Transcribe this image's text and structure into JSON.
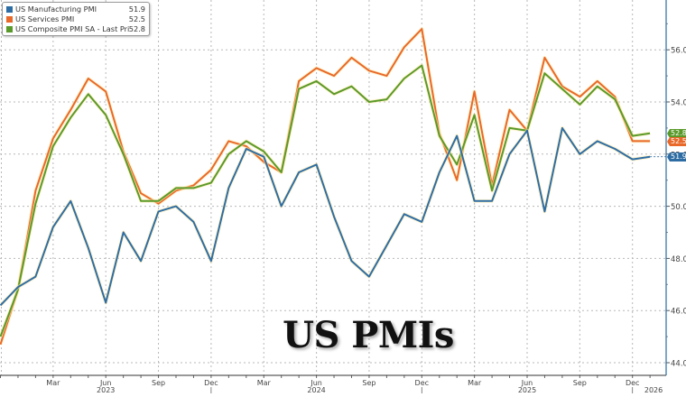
{
  "legend": {
    "items": [
      {
        "label": "US Manufacturing PMI",
        "value": "51.9",
        "color": "#2e6da4"
      },
      {
        "label": "US Services PMI",
        "value": "52.5",
        "color": "#e8692a"
      },
      {
        "label": "US Composite PMI SA - Last Price",
        "value": "52.8",
        "color": "#5a9a2a"
      }
    ]
  },
  "title": "US PMIs",
  "last_tags": [
    {
      "series": "composite",
      "text": "52.8",
      "color": "#5a9a2a"
    },
    {
      "series": "services",
      "text": "52.5",
      "color": "#e8692a"
    },
    {
      "series": "manufacturing",
      "text": "51.9",
      "color": "#2e6da4"
    }
  ],
  "chart_data": {
    "type": "line",
    "title": "US PMIs",
    "xlabel": "",
    "ylabel": "",
    "ylim": [
      43.5,
      57.9
    ],
    "y_ticks": [
      44.0,
      46.0,
      48.0,
      50.0,
      52.0,
      54.0,
      56.0
    ],
    "y_tick_labels": [
      "44.0",
      "46.0",
      "48.0",
      "50.0",
      "52.0",
      "54.0",
      "56.0"
    ],
    "y_axis_position": "right",
    "x_tick_labels": [
      "Mar",
      "Jun",
      "Sep",
      "Dec",
      "Mar",
      "Jun",
      "Sep",
      "Dec",
      "Mar",
      "Jun",
      "Sep",
      "Dec"
    ],
    "x_year_labels": [
      "2023",
      "2024",
      "2025",
      "2026"
    ],
    "grid": true,
    "legend_position": "top-left",
    "x": [
      "Dec 2022",
      "Jan 2023",
      "Feb 2023",
      "Mar 2023",
      "Apr 2023",
      "May 2023",
      "Jun 2023",
      "Jul 2023",
      "Aug 2023",
      "Sep 2023",
      "Oct 2023",
      "Nov 2023",
      "Dec 2023",
      "Jan 2024",
      "Feb 2024",
      "Mar 2024",
      "Apr 2024",
      "May 2024",
      "Jun 2024",
      "Jul 2024",
      "Aug 2024",
      "Sep 2024",
      "Oct 2024",
      "Nov 2024",
      "Dec 2024",
      "Jan 2025",
      "Feb 2025",
      "Mar 2025",
      "Apr 2025",
      "May 2025",
      "Jun 2025",
      "Jul 2025",
      "Aug 2025",
      "Sep 2025",
      "Oct 2025",
      "Nov 2025",
      "Dec 2025",
      "Jan 2026"
    ],
    "series": [
      {
        "name": "US Manufacturing PMI",
        "color": "#2e6da4",
        "last": 51.9,
        "values": [
          46.2,
          46.9,
          47.3,
          49.2,
          50.2,
          48.4,
          46.3,
          49.0,
          47.9,
          49.8,
          50.0,
          49.4,
          47.9,
          50.7,
          52.2,
          51.9,
          50.0,
          51.3,
          51.6,
          49.6,
          47.9,
          47.3,
          48.5,
          49.7,
          49.4,
          51.3,
          52.7,
          50.2,
          50.2,
          52.0,
          52.9,
          49.8,
          53.0,
          52.0,
          52.5,
          52.2,
          51.8,
          51.9
        ]
      },
      {
        "name": "US Services PMI",
        "color": "#e8692a",
        "last": 52.5,
        "values": [
          44.7,
          46.8,
          50.6,
          52.6,
          53.7,
          54.9,
          54.4,
          52.1,
          50.5,
          50.1,
          50.6,
          50.8,
          51.4,
          52.5,
          52.3,
          51.7,
          51.3,
          54.8,
          55.3,
          55.0,
          55.7,
          55.2,
          55.0,
          56.1,
          56.8,
          52.8,
          51.0,
          54.4,
          50.8,
          53.7,
          52.9,
          55.7,
          54.6,
          54.2,
          54.8,
          54.2,
          52.5,
          52.5
        ]
      },
      {
        "name": "US Composite PMI SA - Last Price",
        "color": "#5a9a2a",
        "last": 52.8,
        "values": [
          45.0,
          46.8,
          50.1,
          52.3,
          53.4,
          54.3,
          53.5,
          52.0,
          50.2,
          50.2,
          50.7,
          50.7,
          50.9,
          52.0,
          52.5,
          52.1,
          51.3,
          54.5,
          54.8,
          54.3,
          54.6,
          54.0,
          54.1,
          54.9,
          55.4,
          52.7,
          51.6,
          53.5,
          50.6,
          53.0,
          52.9,
          55.1,
          54.5,
          53.9,
          54.6,
          54.1,
          52.7,
          52.8
        ]
      }
    ]
  }
}
